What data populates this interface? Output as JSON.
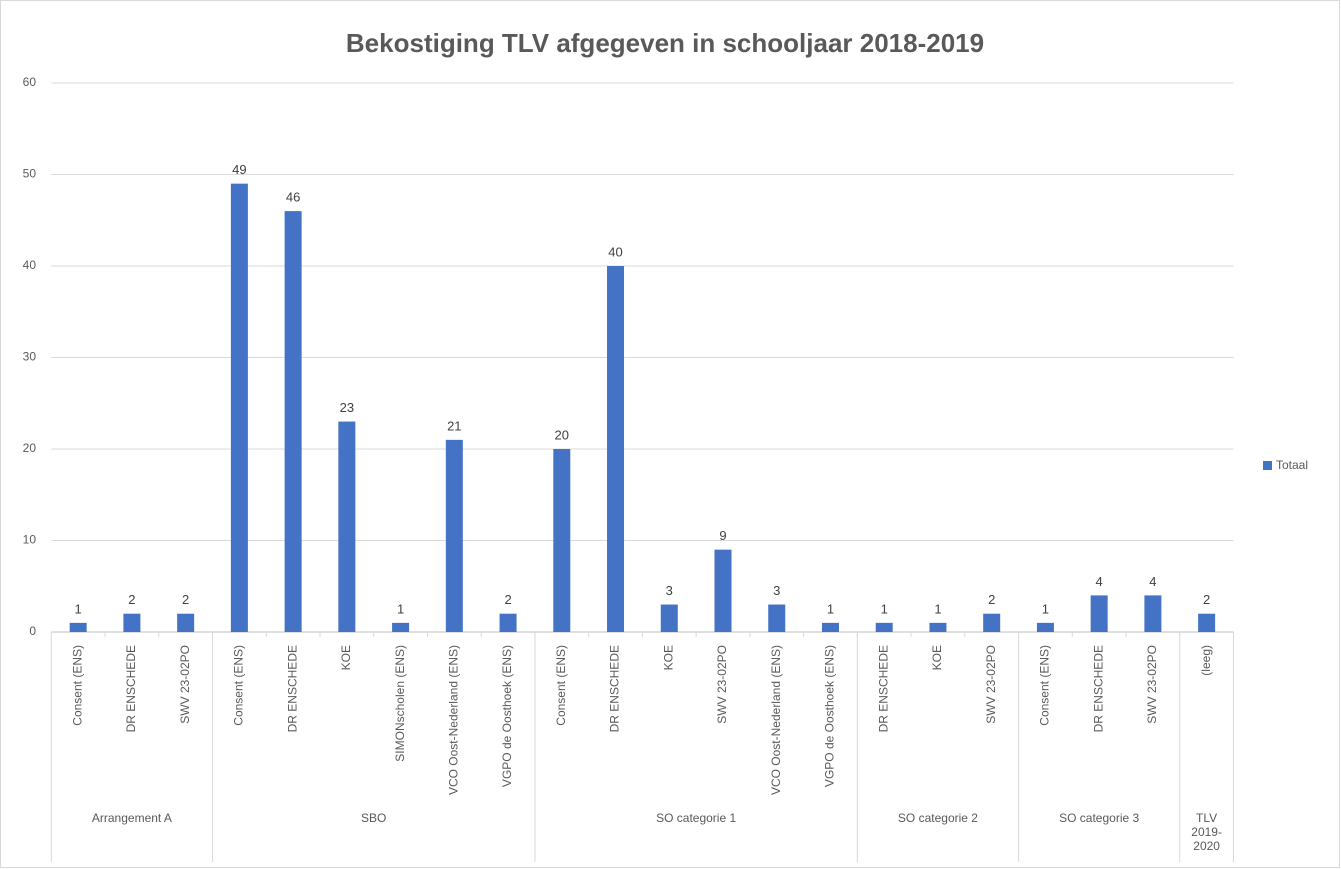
{
  "chart_data": {
    "type": "bar",
    "title": "Bekostiging TLV afgegeven in schooljaar 2018-2019",
    "groups": [
      {
        "name": "Arrangement A",
        "categories": [
          "Consent (ENS)",
          "DR ENSCHEDE",
          "SWV 23-02PO"
        ]
      },
      {
        "name": "SBO",
        "categories": [
          "Consent (ENS)",
          "DR ENSCHEDE",
          "KOE",
          "SIMONscholen (ENS)",
          "VCO Oost-Nederland (ENS)",
          "VGPO de Oosthoek (ENS)"
        ]
      },
      {
        "name": "SO categorie 1",
        "categories": [
          "Consent (ENS)",
          "DR ENSCHEDE",
          "KOE",
          "SWV 23-02PO",
          "VCO Oost-Nederland (ENS)",
          "VGPO de Oosthoek (ENS)"
        ]
      },
      {
        "name": "SO categorie 2",
        "categories": [
          "DR ENSCHEDE",
          "KOE",
          "SWV 23-02PO"
        ]
      },
      {
        "name": "SO categorie 3",
        "categories": [
          "Consent (ENS)",
          "DR ENSCHEDE",
          "SWV 23-02PO"
        ]
      },
      {
        "name": "TLV 2019-2020",
        "categories": [
          "(leeg)"
        ]
      }
    ],
    "series": [
      {
        "name": "Totaal",
        "color": "#4472c4",
        "values": [
          1,
          2,
          2,
          49,
          46,
          23,
          1,
          21,
          2,
          20,
          40,
          3,
          9,
          3,
          1,
          1,
          1,
          2,
          1,
          4,
          4,
          2
        ]
      }
    ],
    "ylim": [
      0,
      60
    ],
    "yticks": [
      0,
      10,
      20,
      30,
      40,
      50,
      60
    ],
    "grid": true,
    "legend": "right"
  }
}
